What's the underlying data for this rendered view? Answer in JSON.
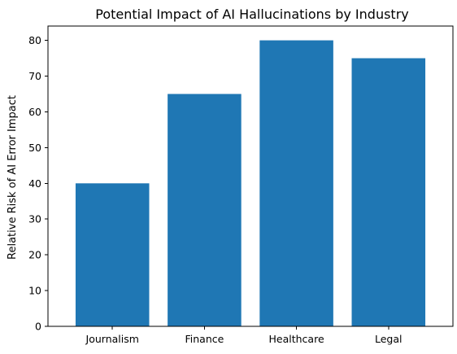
{
  "chart_data": {
    "type": "bar",
    "title": "Potential Impact of AI Hallucinations by Industry",
    "xlabel": "",
    "ylabel": "Relative Risk of AI Error Impact",
    "categories": [
      "Journalism",
      "Finance",
      "Healthcare",
      "Legal"
    ],
    "values": [
      40,
      65,
      80,
      75
    ],
    "ylim": [
      0,
      84
    ],
    "yticks": [
      0,
      10,
      20,
      30,
      40,
      50,
      60,
      70,
      80
    ],
    "grid": false,
    "bar_color": "#1f77b4"
  }
}
